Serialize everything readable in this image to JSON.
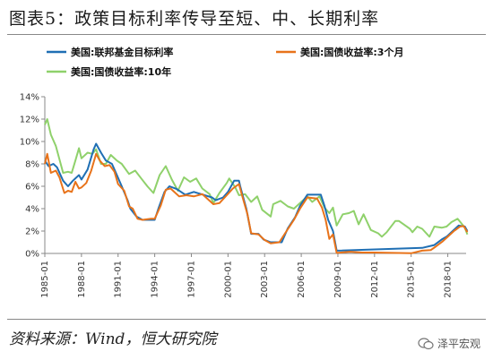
{
  "figure": {
    "title": "图表5：政策目标利率传导至短、中、长期利率",
    "source": "资料来源：Wind，恒大研究院",
    "watermark": "泽平宏观"
  },
  "chart_data": {
    "type": "line",
    "y_ticks": [
      "0%",
      "2%",
      "4%",
      "6%",
      "8%",
      "10%",
      "12%",
      "14%"
    ],
    "x_ticks": [
      "1985-01",
      "1988-01",
      "1991-01",
      "1994-01",
      "1997-01",
      "2000-01",
      "2003-01",
      "2006-01",
      "2009-01",
      "2012-01",
      "2015-01",
      "2018-01"
    ],
    "xlim": [
      1985.0,
      2019.5
    ],
    "ylim": [
      0,
      14
    ],
    "legend_position": "top",
    "series": [
      {
        "name": "美国:联邦基金目标利率",
        "color": "#1f6fb4",
        "points": [
          [
            1985.0,
            8.3
          ],
          [
            1985.3,
            7.8
          ],
          [
            1985.7,
            8.0
          ],
          [
            1986.0,
            7.7
          ],
          [
            1986.5,
            6.5
          ],
          [
            1986.9,
            6.0
          ],
          [
            1987.3,
            6.5
          ],
          [
            1987.8,
            7.0
          ],
          [
            1988.0,
            6.6
          ],
          [
            1988.5,
            7.5
          ],
          [
            1989.0,
            9.3
          ],
          [
            1989.2,
            9.8
          ],
          [
            1989.6,
            9.0
          ],
          [
            1990.0,
            8.3
          ],
          [
            1990.5,
            8.0
          ],
          [
            1990.9,
            7.0
          ],
          [
            1991.3,
            6.0
          ],
          [
            1991.8,
            4.7
          ],
          [
            1992.0,
            4.0
          ],
          [
            1992.5,
            3.3
          ],
          [
            1993.0,
            3.0
          ],
          [
            1994.0,
            3.0
          ],
          [
            1994.3,
            4.0
          ],
          [
            1994.8,
            5.5
          ],
          [
            1995.2,
            6.0
          ],
          [
            1995.8,
            5.75
          ],
          [
            1996.5,
            5.25
          ],
          [
            1997.2,
            5.5
          ],
          [
            1998.7,
            5.0
          ],
          [
            1999.0,
            4.75
          ],
          [
            1999.6,
            5.0
          ],
          [
            2000.0,
            5.5
          ],
          [
            2000.5,
            6.5
          ],
          [
            2000.9,
            6.5
          ],
          [
            2001.0,
            6.0
          ],
          [
            2001.5,
            4.0
          ],
          [
            2001.9,
            1.75
          ],
          [
            2002.5,
            1.75
          ],
          [
            2002.9,
            1.25
          ],
          [
            2003.5,
            1.0
          ],
          [
            2004.4,
            1.0
          ],
          [
            2004.9,
            2.25
          ],
          [
            2005.5,
            3.25
          ],
          [
            2005.9,
            4.25
          ],
          [
            2006.5,
            5.25
          ],
          [
            2007.6,
            5.25
          ],
          [
            2007.9,
            4.25
          ],
          [
            2008.2,
            3.0
          ],
          [
            2008.6,
            2.0
          ],
          [
            2008.9,
            0.25
          ],
          [
            2015.9,
            0.5
          ],
          [
            2016.9,
            0.75
          ],
          [
            2017.5,
            1.25
          ],
          [
            2017.9,
            1.5
          ],
          [
            2018.4,
            2.0
          ],
          [
            2018.9,
            2.5
          ],
          [
            2019.4,
            2.4
          ],
          [
            2019.6,
            2.0
          ]
        ]
      },
      {
        "name": "美国:国债收益率:3个月",
        "color": "#e8731a",
        "points": [
          [
            1985.0,
            8.0
          ],
          [
            1985.2,
            8.9
          ],
          [
            1985.5,
            7.2
          ],
          [
            1985.9,
            7.4
          ],
          [
            1986.2,
            6.8
          ],
          [
            1986.6,
            5.4
          ],
          [
            1986.9,
            5.6
          ],
          [
            1987.2,
            5.5
          ],
          [
            1987.5,
            6.4
          ],
          [
            1987.8,
            5.8
          ],
          [
            1988.0,
            5.9
          ],
          [
            1988.4,
            6.3
          ],
          [
            1988.8,
            7.4
          ],
          [
            1989.2,
            8.9
          ],
          [
            1989.5,
            8.3
          ],
          [
            1989.9,
            7.8
          ],
          [
            1990.3,
            7.9
          ],
          [
            1990.7,
            7.3
          ],
          [
            1991.0,
            6.2
          ],
          [
            1991.5,
            5.6
          ],
          [
            1991.9,
            4.2
          ],
          [
            1992.2,
            4.0
          ],
          [
            1992.6,
            3.1
          ],
          [
            1993.0,
            3.0
          ],
          [
            1993.7,
            3.1
          ],
          [
            1994.0,
            3.1
          ],
          [
            1994.5,
            4.3
          ],
          [
            1994.9,
            5.7
          ],
          [
            1995.3,
            5.8
          ],
          [
            1996.0,
            5.1
          ],
          [
            1996.6,
            5.2
          ],
          [
            1997.2,
            5.1
          ],
          [
            1997.9,
            5.3
          ],
          [
            1998.8,
            4.4
          ],
          [
            1999.3,
            4.5
          ],
          [
            1999.9,
            5.2
          ],
          [
            2000.4,
            5.8
          ],
          [
            2000.9,
            6.2
          ],
          [
            2001.2,
            5.0
          ],
          [
            2001.6,
            3.5
          ],
          [
            2001.9,
            1.8
          ],
          [
            2002.5,
            1.7
          ],
          [
            2003.0,
            1.2
          ],
          [
            2003.5,
            0.9
          ],
          [
            2004.2,
            1.0
          ],
          [
            2004.8,
            2.0
          ],
          [
            2005.4,
            3.0
          ],
          [
            2005.9,
            4.0
          ],
          [
            2006.5,
            5.0
          ],
          [
            2007.3,
            4.9
          ],
          [
            2007.7,
            4.1
          ],
          [
            2008.0,
            3.0
          ],
          [
            2008.3,
            1.3
          ],
          [
            2008.6,
            1.7
          ],
          [
            2008.9,
            0.05
          ],
          [
            2010.0,
            0.15
          ],
          [
            2011.0,
            0.08
          ],
          [
            2012.0,
            0.08
          ],
          [
            2013.5,
            0.05
          ],
          [
            2015.0,
            0.02
          ],
          [
            2015.9,
            0.25
          ],
          [
            2016.6,
            0.3
          ],
          [
            2017.0,
            0.6
          ],
          [
            2017.6,
            1.1
          ],
          [
            2018.0,
            1.5
          ],
          [
            2018.5,
            2.0
          ],
          [
            2019.0,
            2.4
          ],
          [
            2019.3,
            2.45
          ],
          [
            2019.6,
            1.9
          ]
        ]
      },
      {
        "name": "美国:国债收益率:10年",
        "color": "#8fd16b",
        "points": [
          [
            1985.0,
            11.5
          ],
          [
            1985.2,
            12.0
          ],
          [
            1985.5,
            10.6
          ],
          [
            1985.9,
            9.6
          ],
          [
            1986.3,
            8.0
          ],
          [
            1986.5,
            7.2
          ],
          [
            1986.9,
            7.3
          ],
          [
            1987.2,
            7.2
          ],
          [
            1987.5,
            8.3
          ],
          [
            1987.8,
            9.4
          ],
          [
            1988.0,
            8.5
          ],
          [
            1988.5,
            9.0
          ],
          [
            1988.9,
            8.9
          ],
          [
            1989.2,
            9.3
          ],
          [
            1989.6,
            8.0
          ],
          [
            1990.0,
            8.0
          ],
          [
            1990.4,
            8.8
          ],
          [
            1990.9,
            8.3
          ],
          [
            1991.3,
            8.0
          ],
          [
            1991.9,
            7.1
          ],
          [
            1992.4,
            7.4
          ],
          [
            1992.9,
            6.7
          ],
          [
            1993.4,
            6.0
          ],
          [
            1993.9,
            5.4
          ],
          [
            1994.4,
            7.0
          ],
          [
            1994.9,
            7.8
          ],
          [
            1995.4,
            6.6
          ],
          [
            1995.9,
            5.6
          ],
          [
            1996.4,
            6.8
          ],
          [
            1996.9,
            6.4
          ],
          [
            1997.4,
            6.7
          ],
          [
            1997.9,
            5.8
          ],
          [
            1998.5,
            5.3
          ],
          [
            1998.8,
            4.5
          ],
          [
            1999.3,
            5.4
          ],
          [
            1999.9,
            6.3
          ],
          [
            2000.1,
            6.7
          ],
          [
            2000.6,
            5.9
          ],
          [
            2000.9,
            5.2
          ],
          [
            2001.4,
            5.3
          ],
          [
            2001.9,
            4.6
          ],
          [
            2002.4,
            5.1
          ],
          [
            2002.8,
            3.9
          ],
          [
            2003.5,
            3.3
          ],
          [
            2003.7,
            4.4
          ],
          [
            2004.3,
            4.7
          ],
          [
            2004.9,
            4.2
          ],
          [
            2005.4,
            4.0
          ],
          [
            2005.9,
            4.5
          ],
          [
            2006.5,
            5.1
          ],
          [
            2006.9,
            4.6
          ],
          [
            2007.5,
            5.1
          ],
          [
            2007.9,
            4.1
          ],
          [
            2008.3,
            3.6
          ],
          [
            2008.6,
            4.1
          ],
          [
            2008.9,
            2.5
          ],
          [
            2009.4,
            3.5
          ],
          [
            2009.9,
            3.6
          ],
          [
            2010.3,
            3.8
          ],
          [
            2010.7,
            2.6
          ],
          [
            2011.1,
            3.5
          ],
          [
            2011.7,
            2.1
          ],
          [
            2012.3,
            1.8
          ],
          [
            2012.6,
            1.5
          ],
          [
            2013.0,
            1.9
          ],
          [
            2013.7,
            2.9
          ],
          [
            2014.0,
            2.9
          ],
          [
            2014.9,
            2.2
          ],
          [
            2015.1,
            1.9
          ],
          [
            2015.5,
            2.4
          ],
          [
            2015.9,
            2.2
          ],
          [
            2016.5,
            1.5
          ],
          [
            2016.9,
            2.4
          ],
          [
            2017.5,
            2.3
          ],
          [
            2017.9,
            2.4
          ],
          [
            2018.3,
            2.8
          ],
          [
            2018.8,
            3.1
          ],
          [
            2019.1,
            2.7
          ],
          [
            2019.4,
            2.3
          ],
          [
            2019.6,
            1.7
          ]
        ]
      }
    ]
  }
}
